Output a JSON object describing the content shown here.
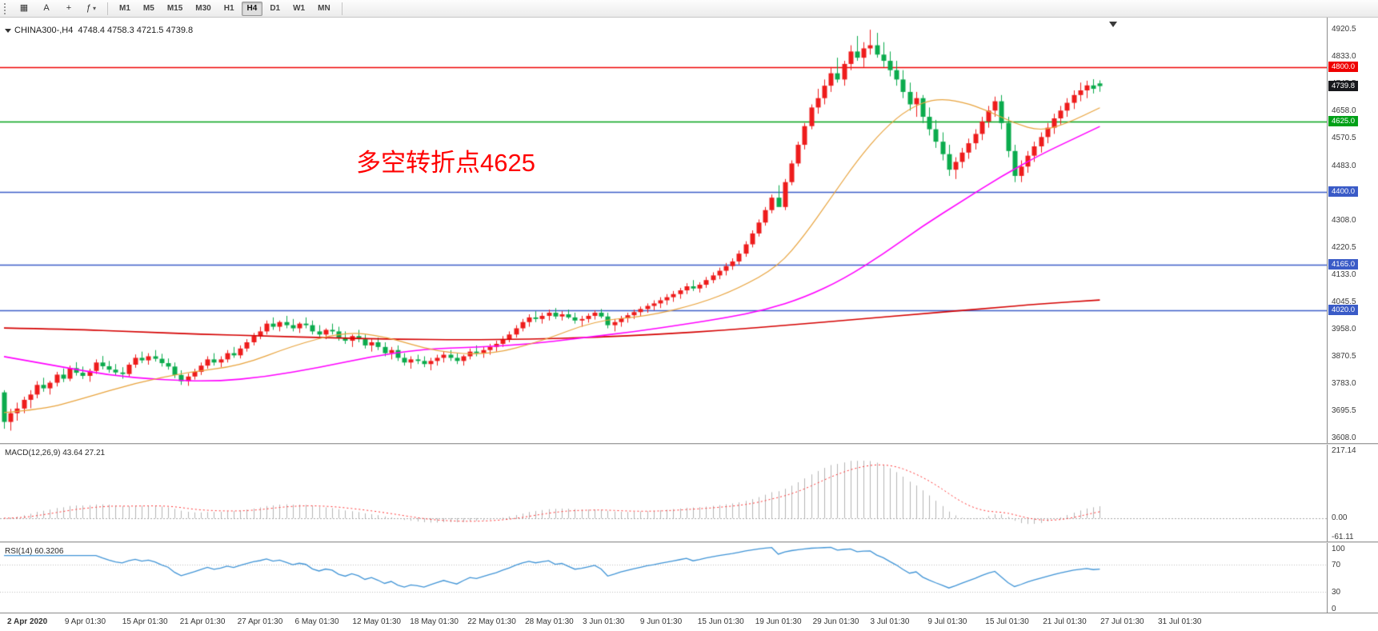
{
  "toolbar": {
    "tools": [
      {
        "name": "charts-window-icon",
        "glyph": "▦"
      },
      {
        "name": "text-annotation-tool-icon",
        "glyph": "A"
      },
      {
        "name": "crosshair-tool-icon",
        "glyph": "+"
      },
      {
        "name": "indicators-dropdown-icon",
        "glyph": "ƒ",
        "dropdown": true
      }
    ],
    "timeframes": [
      "M1",
      "M5",
      "M15",
      "M30",
      "H1",
      "H4",
      "D1",
      "W1",
      "MN"
    ],
    "active_timeframe": "H4"
  },
  "chart": {
    "type": "candlestick",
    "symbol_title": "CHINA300-,H4",
    "ohlc_text": "4748.4 4758.3 4721.5 4739.8",
    "current_price": 4739.8,
    "current_price_label": "4739.8",
    "annotation": {
      "text": "多空转折点4625",
      "color": "#ff0000"
    },
    "colors": {
      "up": "#ee1c1c",
      "down": "#0bab4d",
      "current_flag": "#17181c"
    },
    "price_axis": {
      "min": 3592,
      "max": 4960,
      "ticks": [
        4920.5,
        4833.0,
        4745.5,
        4658.0,
        4570.5,
        4483.0,
        4395.5,
        4308.0,
        4220.5,
        4133.0,
        4045.5,
        3958.0,
        3870.5,
        3783.0,
        3695.5,
        3608.0
      ]
    },
    "hlines": [
      {
        "price": 4800.0,
        "label": "4800.0",
        "color": "#ef0000"
      },
      {
        "price": 4625.0,
        "label": "4625.0",
        "color": "#00a017"
      },
      {
        "price": 4400.0,
        "label": "4400.0",
        "color": "#3a5bc7"
      },
      {
        "price": 4165.0,
        "label": "4165.0",
        "color": "#3a5bc7"
      },
      {
        "price": 4020.0,
        "label": "4020.0",
        "color": "#3a5bc7"
      }
    ],
    "ma": {
      "fast": {
        "color": "#e8a33d",
        "points": [
          [
            0,
            3690
          ],
          [
            6,
            3700
          ],
          [
            12,
            3735
          ],
          [
            20,
            3785
          ],
          [
            28,
            3820
          ],
          [
            36,
            3840
          ],
          [
            44,
            3905
          ],
          [
            52,
            3950
          ],
          [
            58,
            3935
          ],
          [
            66,
            3885
          ],
          [
            74,
            3875
          ],
          [
            82,
            3920
          ],
          [
            90,
            3985
          ],
          [
            98,
            4000
          ],
          [
            106,
            4040
          ],
          [
            112,
            4090
          ],
          [
            118,
            4160
          ],
          [
            122,
            4260
          ],
          [
            126,
            4380
          ],
          [
            130,
            4500
          ],
          [
            134,
            4600
          ],
          [
            138,
            4670
          ],
          [
            142,
            4700
          ],
          [
            146,
            4690
          ],
          [
            150,
            4660
          ],
          [
            154,
            4620
          ],
          [
            158,
            4595
          ],
          [
            162,
            4620
          ],
          [
            167,
            4670
          ]
        ]
      },
      "mid": {
        "color": "#ff00ff",
        "points": [
          [
            0,
            3870
          ],
          [
            8,
            3840
          ],
          [
            16,
            3810
          ],
          [
            24,
            3795
          ],
          [
            32,
            3790
          ],
          [
            40,
            3805
          ],
          [
            48,
            3835
          ],
          [
            56,
            3870
          ],
          [
            64,
            3895
          ],
          [
            72,
            3900
          ],
          [
            80,
            3910
          ],
          [
            88,
            3930
          ],
          [
            96,
            3950
          ],
          [
            104,
            3975
          ],
          [
            110,
            3995
          ],
          [
            116,
            4020
          ],
          [
            122,
            4060
          ],
          [
            128,
            4120
          ],
          [
            134,
            4200
          ],
          [
            140,
            4290
          ],
          [
            146,
            4370
          ],
          [
            152,
            4450
          ],
          [
            158,
            4520
          ],
          [
            163,
            4570
          ],
          [
            167,
            4610
          ]
        ]
      },
      "slow": {
        "color": "#d40000",
        "points": [
          [
            0,
            3962
          ],
          [
            10,
            3958
          ],
          [
            20,
            3950
          ],
          [
            30,
            3942
          ],
          [
            40,
            3936
          ],
          [
            50,
            3930
          ],
          [
            60,
            3926
          ],
          [
            70,
            3924
          ],
          [
            80,
            3926
          ],
          [
            90,
            3932
          ],
          [
            100,
            3942
          ],
          [
            110,
            3955
          ],
          [
            120,
            3972
          ],
          [
            130,
            3990
          ],
          [
            140,
            4008
          ],
          [
            150,
            4025
          ],
          [
            158,
            4040
          ],
          [
            167,
            4052
          ]
        ]
      }
    },
    "candles": [
      [
        3755,
        3762,
        3638,
        3660
      ],
      [
        3660,
        3702,
        3632,
        3688
      ],
      [
        3688,
        3722,
        3664,
        3703
      ],
      [
        3703,
        3741,
        3688,
        3731
      ],
      [
        3731,
        3762,
        3704,
        3748
      ],
      [
        3748,
        3791,
        3736,
        3779
      ],
      [
        3779,
        3802,
        3757,
        3768
      ],
      [
        3768,
        3792,
        3748,
        3786
      ],
      [
        3786,
        3821,
        3774,
        3812
      ],
      [
        3812,
        3832,
        3788,
        3799
      ],
      [
        3799,
        3841,
        3791,
        3833
      ],
      [
        3833,
        3852,
        3809,
        3818
      ],
      [
        3818,
        3838,
        3798,
        3808
      ],
      [
        3808,
        3831,
        3789,
        3824
      ],
      [
        3824,
        3861,
        3814,
        3851
      ],
      [
        3851,
        3872,
        3829,
        3839
      ],
      [
        3839,
        3856,
        3818,
        3828
      ],
      [
        3828,
        3846,
        3809,
        3819
      ],
      [
        3819,
        3836,
        3799,
        3814
      ],
      [
        3814,
        3851,
        3804,
        3844
      ],
      [
        3844,
        3877,
        3834,
        3866
      ],
      [
        3866,
        3886,
        3849,
        3858
      ],
      [
        3858,
        3881,
        3844,
        3871
      ],
      [
        3871,
        3891,
        3854,
        3863
      ],
      [
        3863,
        3879,
        3838,
        3849
      ],
      [
        3849,
        3864,
        3828,
        3838
      ],
      [
        3838,
        3851,
        3801,
        3811
      ],
      [
        3811,
        3826,
        3779,
        3791
      ],
      [
        3791,
        3816,
        3776,
        3806
      ],
      [
        3806,
        3831,
        3796,
        3821
      ],
      [
        3821,
        3851,
        3811,
        3841
      ],
      [
        3841,
        3871,
        3831,
        3861
      ],
      [
        3861,
        3881,
        3841,
        3851
      ],
      [
        3851,
        3871,
        3836,
        3861
      ],
      [
        3861,
        3891,
        3851,
        3881
      ],
      [
        3881,
        3901,
        3866,
        3874
      ],
      [
        3874,
        3906,
        3864,
        3896
      ],
      [
        3896,
        3926,
        3886,
        3916
      ],
      [
        3916,
        3946,
        3906,
        3936
      ],
      [
        3936,
        3966,
        3926,
        3951
      ],
      [
        3951,
        3986,
        3941,
        3976
      ],
      [
        3976,
        3996,
        3956,
        3966
      ],
      [
        3966,
        3986,
        3951,
        3981
      ],
      [
        3981,
        4001,
        3961,
        3971
      ],
      [
        3971,
        3991,
        3951,
        3961
      ],
      [
        3961,
        3981,
        3946,
        3976
      ],
      [
        3976,
        3996,
        3961,
        3971
      ],
      [
        3971,
        3986,
        3941,
        3951
      ],
      [
        3951,
        3971,
        3931,
        3941
      ],
      [
        3941,
        3961,
        3926,
        3956
      ],
      [
        3956,
        3976,
        3941,
        3951
      ],
      [
        3951,
        3966,
        3921,
        3931
      ],
      [
        3931,
        3951,
        3911,
        3921
      ],
      [
        3921,
        3941,
        3901,
        3936
      ],
      [
        3936,
        3956,
        3916,
        3926
      ],
      [
        3926,
        3941,
        3896,
        3906
      ],
      [
        3906,
        3926,
        3886,
        3916
      ],
      [
        3916,
        3931,
        3891,
        3901
      ],
      [
        3901,
        3916,
        3871,
        3881
      ],
      [
        3881,
        3901,
        3861,
        3891
      ],
      [
        3891,
        3906,
        3856,
        3866
      ],
      [
        3866,
        3881,
        3841,
        3851
      ],
      [
        3851,
        3871,
        3831,
        3861
      ],
      [
        3861,
        3876,
        3846,
        3856
      ],
      [
        3856,
        3871,
        3836,
        3846
      ],
      [
        3846,
        3866,
        3826,
        3856
      ],
      [
        3856,
        3876,
        3841,
        3866
      ],
      [
        3866,
        3886,
        3851,
        3876
      ],
      [
        3876,
        3891,
        3856,
        3866
      ],
      [
        3866,
        3881,
        3846,
        3856
      ],
      [
        3856,
        3876,
        3841,
        3871
      ],
      [
        3871,
        3896,
        3861,
        3886
      ],
      [
        3886,
        3906,
        3871,
        3881
      ],
      [
        3881,
        3901,
        3866,
        3891
      ],
      [
        3891,
        3911,
        3876,
        3901
      ],
      [
        3901,
        3921,
        3886,
        3911
      ],
      [
        3911,
        3936,
        3901,
        3926
      ],
      [
        3926,
        3951,
        3916,
        3941
      ],
      [
        3941,
        3971,
        3931,
        3961
      ],
      [
        3961,
        3991,
        3951,
        3981
      ],
      [
        3981,
        4006,
        3966,
        3996
      ],
      [
        3996,
        4016,
        3981,
        3991
      ],
      [
        3991,
        4011,
        3976,
        4001
      ],
      [
        4001,
        4021,
        3986,
        4011
      ],
      [
        4011,
        4026,
        3991,
        3999
      ],
      [
        3999,
        4016,
        3986,
        4006
      ],
      [
        4006,
        4021,
        3991,
        3996
      ],
      [
        3996,
        4011,
        3976,
        3986
      ],
      [
        3986,
        4001,
        3966,
        3991
      ],
      [
        3991,
        4009,
        3979,
        4001
      ],
      [
        4001,
        4019,
        3989,
        4011
      ],
      [
        4011,
        4023,
        3993,
        3999
      ],
      [
        3999,
        4011,
        3961,
        3971
      ],
      [
        3971,
        3991,
        3951,
        3981
      ],
      [
        3981,
        4001,
        3966,
        3993
      ],
      [
        3993,
        4011,
        3979,
        4003
      ],
      [
        4003,
        4021,
        3991,
        4013
      ],
      [
        4013,
        4031,
        4001,
        4023
      ],
      [
        4023,
        4041,
        4011,
        4033
      ],
      [
        4033,
        4051,
        4019,
        4041
      ],
      [
        4041,
        4061,
        4026,
        4051
      ],
      [
        4051,
        4071,
        4036,
        4061
      ],
      [
        4061,
        4081,
        4046,
        4071
      ],
      [
        4071,
        4091,
        4056,
        4083
      ],
      [
        4083,
        4106,
        4071,
        4096
      ],
      [
        4096,
        4116,
        4081,
        4089
      ],
      [
        4089,
        4109,
        4076,
        4101
      ],
      [
        4101,
        4126,
        4091,
        4116
      ],
      [
        4116,
        4141,
        4106,
        4131
      ],
      [
        4131,
        4156,
        4119,
        4146
      ],
      [
        4146,
        4171,
        4131,
        4161
      ],
      [
        4161,
        4186,
        4149,
        4176
      ],
      [
        4176,
        4211,
        4166,
        4201
      ],
      [
        4201,
        4241,
        4191,
        4231
      ],
      [
        4231,
        4276,
        4221,
        4266
      ],
      [
        4266,
        4311,
        4256,
        4301
      ],
      [
        4301,
        4351,
        4291,
        4341
      ],
      [
        4341,
        4391,
        4331,
        4381
      ],
      [
        4381,
        4421,
        4361,
        4351
      ],
      [
        4351,
        4441,
        4341,
        4431
      ],
      [
        4431,
        4501,
        4421,
        4491
      ],
      [
        4491,
        4561,
        4481,
        4551
      ],
      [
        4551,
        4621,
        4536,
        4611
      ],
      [
        4611,
        4681,
        4601,
        4671
      ],
      [
        4671,
        4731,
        4651,
        4701
      ],
      [
        4701,
        4761,
        4681,
        4741
      ],
      [
        4741,
        4801,
        4721,
        4781
      ],
      [
        4781,
        4831,
        4751,
        4761
      ],
      [
        4761,
        4821,
        4741,
        4811
      ],
      [
        4811,
        4871,
        4791,
        4851
      ],
      [
        4851,
        4901,
        4821,
        4831
      ],
      [
        4831,
        4881,
        4801,
        4861
      ],
      [
        4861,
        4921,
        4841,
        4871
      ],
      [
        4871,
        4911,
        4831,
        4841
      ],
      [
        4841,
        4881,
        4801,
        4821
      ],
      [
        4821,
        4851,
        4771,
        4791
      ],
      [
        4791,
        4821,
        4741,
        4761
      ],
      [
        4761,
        4791,
        4701,
        4721
      ],
      [
        4721,
        4751,
        4661,
        4681
      ],
      [
        4681,
        4721,
        4641,
        4701
      ],
      [
        4701,
        4711,
        4621,
        4641
      ],
      [
        4641,
        4671,
        4581,
        4601
      ],
      [
        4601,
        4631,
        4541,
        4561
      ],
      [
        4561,
        4591,
        4501,
        4521
      ],
      [
        4521,
        4551,
        4451,
        4471
      ],
      [
        4471,
        4511,
        4441,
        4496
      ],
      [
        4496,
        4541,
        4476,
        4526
      ],
      [
        4526,
        4571,
        4506,
        4556
      ],
      [
        4556,
        4601,
        4536,
        4586
      ],
      [
        4586,
        4641,
        4566,
        4626
      ],
      [
        4626,
        4676,
        4606,
        4661
      ],
      [
        4661,
        4706,
        4641,
        4691
      ],
      [
        4691,
        4711,
        4601,
        4621
      ],
      [
        4621,
        4641,
        4511,
        4531
      ],
      [
        4531,
        4551,
        4431,
        4451
      ],
      [
        4451,
        4501,
        4431,
        4481
      ],
      [
        4481,
        4531,
        4461,
        4516
      ],
      [
        4516,
        4561,
        4496,
        4546
      ],
      [
        4546,
        4591,
        4526,
        4576
      ],
      [
        4576,
        4621,
        4556,
        4606
      ],
      [
        4606,
        4651,
        4586,
        4636
      ],
      [
        4636,
        4676,
        4616,
        4661
      ],
      [
        4661,
        4701,
        4641,
        4686
      ],
      [
        4686,
        4726,
        4666,
        4711
      ],
      [
        4711,
        4751,
        4691,
        4726
      ],
      [
        4726,
        4757,
        4701,
        4742
      ],
      [
        4742,
        4762,
        4716,
        4731
      ],
      [
        4748.4,
        4758.3,
        4721.5,
        4739.8
      ]
    ],
    "time_axis": [
      "2 Apr 2020",
      "9 Apr 01:30",
      "15 Apr 01:30",
      "21 Apr 01:30",
      "27 Apr 01:30",
      "6 May 01:30",
      "12 May 01:30",
      "18 May 01:30",
      "22 May 01:30",
      "28 May 01:30",
      "3 Jun 01:30",
      "9 Jun 01:30",
      "15 Jun 01:30",
      "19 Jun 01:30",
      "29 Jun 01:30",
      "3 Jul 01:30",
      "9 Jul 01:30",
      "15 Jul 01:30",
      "21 Jul 01:30",
      "27 Jul 01:30",
      "31 Jul 01:30"
    ]
  },
  "macd": {
    "label": "MACD(12,26,9)",
    "values": "43.64 27.21",
    "fast_period": 12,
    "slow_period": 26,
    "signal_period": 9,
    "axis_ticks": [
      217.14,
      0,
      -61.11
    ],
    "range": [
      -75,
      235
    ],
    "histogram_color": "#b4b4b4",
    "signal_color": "#ff3434"
  },
  "rsi": {
    "label": "RSI(14)",
    "value": "60.3206",
    "period": 14,
    "axis_ticks": [
      100,
      70,
      30,
      0
    ],
    "levels": [
      70,
      30
    ],
    "line_color": "#4094d6"
  }
}
